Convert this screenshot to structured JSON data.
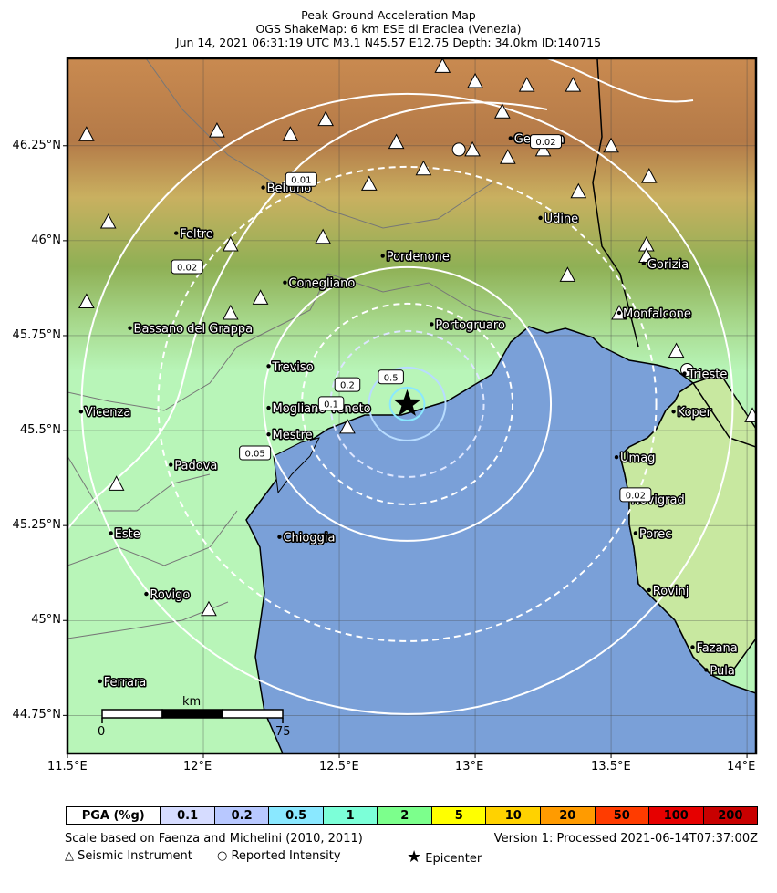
{
  "title": {
    "line1": "Peak Ground Acceleration Map",
    "line2": "OGS ShakeMap: 6 km ESE di Eraclea (Venezia)",
    "line3": "Jun 14, 2021 06:31:19 UTC M3.1 N45.57 E12.75 Depth: 34.0km ID:140715"
  },
  "axes": {
    "lat_ticks": [
      "46.25°N",
      "46°N",
      "45.75°N",
      "45.5°N",
      "45.25°N",
      "45°N",
      "44.75°N"
    ],
    "lon_ticks": [
      "11.5°E",
      "12°E",
      "12.5°E",
      "13°E",
      "13.5°E",
      "14°E"
    ]
  },
  "cities": [
    {
      "name": "Belluno",
      "lon": 12.22,
      "lat": 46.14
    },
    {
      "name": "Feltre",
      "lon": 11.9,
      "lat": 46.02
    },
    {
      "name": "Gemona",
      "lon": 13.13,
      "lat": 46.27
    },
    {
      "name": "Udine",
      "lon": 13.24,
      "lat": 46.06
    },
    {
      "name": "Pordenone",
      "lon": 12.66,
      "lat": 45.96
    },
    {
      "name": "Gorizia",
      "lon": 13.62,
      "lat": 45.94
    },
    {
      "name": "Conegliano",
      "lon": 12.3,
      "lat": 45.89
    },
    {
      "name": "Portogruaro",
      "lon": 12.84,
      "lat": 45.78
    },
    {
      "name": "Monfalcone",
      "lon": 13.53,
      "lat": 45.81
    },
    {
      "name": "Bassano del Grappa",
      "lon": 11.73,
      "lat": 45.77
    },
    {
      "name": "Treviso",
      "lon": 12.24,
      "lat": 45.67
    },
    {
      "name": "Trieste",
      "lon": 13.77,
      "lat": 45.65
    },
    {
      "name": "Mogliano Veneto",
      "lon": 12.24,
      "lat": 45.56
    },
    {
      "name": "Koper",
      "lon": 13.73,
      "lat": 45.55
    },
    {
      "name": "Vicenza",
      "lon": 11.55,
      "lat": 45.55
    },
    {
      "name": "Mestre",
      "lon": 12.24,
      "lat": 45.49
    },
    {
      "name": "Umag",
      "lon": 13.52,
      "lat": 45.43
    },
    {
      "name": "Padova",
      "lon": 11.88,
      "lat": 45.41
    },
    {
      "name": "Novigrad",
      "lon": 13.56,
      "lat": 45.32
    },
    {
      "name": "Este",
      "lon": 11.66,
      "lat": 45.23
    },
    {
      "name": "Chioggia",
      "lon": 12.28,
      "lat": 45.22
    },
    {
      "name": "Porec",
      "lon": 13.59,
      "lat": 45.23
    },
    {
      "name": "Rovinj",
      "lon": 13.64,
      "lat": 45.08
    },
    {
      "name": "Rovigo",
      "lon": 11.79,
      "lat": 45.07
    },
    {
      "name": "Fazana",
      "lon": 13.8,
      "lat": 44.93
    },
    {
      "name": "Pula",
      "lon": 13.85,
      "lat": 44.87
    },
    {
      "name": "Ferrara",
      "lon": 11.62,
      "lat": 44.84
    }
  ],
  "contour_labels": [
    {
      "text": "0.01",
      "lon": 12.36,
      "lat": 46.16
    },
    {
      "text": "0.02",
      "lon": 11.94,
      "lat": 45.93
    },
    {
      "text": "0.02",
      "lon": 13.26,
      "lat": 46.26
    },
    {
      "text": "0.02",
      "lon": 13.59,
      "lat": 45.33
    },
    {
      "text": "0.05",
      "lon": 12.19,
      "lat": 45.44
    },
    {
      "text": "0.1",
      "lon": 12.47,
      "lat": 45.57
    },
    {
      "text": "0.2",
      "lon": 12.53,
      "lat": 45.62
    },
    {
      "text": "0.5",
      "lon": 12.69,
      "lat": 45.64
    }
  ],
  "stations": [
    {
      "lon": 11.57,
      "lat": 46.28
    },
    {
      "lon": 12.05,
      "lat": 46.29
    },
    {
      "lon": 12.32,
      "lat": 46.28
    },
    {
      "lon": 12.45,
      "lat": 46.32
    },
    {
      "lon": 12.88,
      "lat": 46.46
    },
    {
      "lon": 13.0,
      "lat": 46.42
    },
    {
      "lon": 13.19,
      "lat": 46.41
    },
    {
      "lon": 13.36,
      "lat": 46.41
    },
    {
      "lon": 13.1,
      "lat": 46.34
    },
    {
      "lon": 12.71,
      "lat": 46.26
    },
    {
      "lon": 12.81,
      "lat": 46.19
    },
    {
      "lon": 12.61,
      "lat": 46.15
    },
    {
      "lon": 12.99,
      "lat": 46.24
    },
    {
      "lon": 13.12,
      "lat": 46.22
    },
    {
      "lon": 13.25,
      "lat": 46.24
    },
    {
      "lon": 13.5,
      "lat": 46.25
    },
    {
      "lon": 13.64,
      "lat": 46.17
    },
    {
      "lon": 13.38,
      "lat": 46.13
    },
    {
      "lon": 11.65,
      "lat": 46.05
    },
    {
      "lon": 12.1,
      "lat": 45.99
    },
    {
      "lon": 12.44,
      "lat": 46.01
    },
    {
      "lon": 13.63,
      "lat": 45.99
    },
    {
      "lon": 13.63,
      "lat": 45.96
    },
    {
      "lon": 13.34,
      "lat": 45.91
    },
    {
      "lon": 11.57,
      "lat": 45.84
    },
    {
      "lon": 12.21,
      "lat": 45.85
    },
    {
      "lon": 12.1,
      "lat": 45.81
    },
    {
      "lon": 13.53,
      "lat": 45.81
    },
    {
      "lon": 13.74,
      "lat": 45.71
    },
    {
      "lon": 12.53,
      "lat": 45.51
    },
    {
      "lon": 11.68,
      "lat": 45.36
    },
    {
      "lon": 14.02,
      "lat": 45.54
    },
    {
      "lon": 12.02,
      "lat": 45.03
    }
  ],
  "intensity_points": [
    {
      "lon": 12.94,
      "lat": 46.24
    },
    {
      "lon": 13.78,
      "lat": 45.66
    }
  ],
  "epicenter": {
    "lon": 12.75,
    "lat": 45.57
  },
  "scalebar": {
    "label": "km",
    "start": "0",
    "end": "75"
  },
  "legend": {
    "header": "PGA (%g)",
    "cells": [
      {
        "label": "0.1",
        "color": "#d6dcff"
      },
      {
        "label": "0.2",
        "color": "#b8c8ff"
      },
      {
        "label": "0.5",
        "color": "#8ae8ff"
      },
      {
        "label": "1",
        "color": "#7cffd8"
      },
      {
        "label": "2",
        "color": "#7cff8c"
      },
      {
        "label": "5",
        "color": "#ffff00"
      },
      {
        "label": "10",
        "color": "#ffd200"
      },
      {
        "label": "20",
        "color": "#ff9b00"
      },
      {
        "label": "50",
        "color": "#ff3c00"
      },
      {
        "label": "100",
        "color": "#e60000"
      },
      {
        "label": "200",
        "color": "#c80000"
      }
    ]
  },
  "footer": {
    "scale_note": "Scale based on Faenza and Michelini (2010, 2011)",
    "version": "Version 1: Processed 2021-06-14T07:37:00Z",
    "seismic": "Seismic Instrument",
    "reported": "Reported Intensity",
    "epicenter": "Epicenter"
  },
  "colors": {
    "sea": "#7aa0d8",
    "land_low": "#b8f5b8",
    "frame": "#000000"
  }
}
